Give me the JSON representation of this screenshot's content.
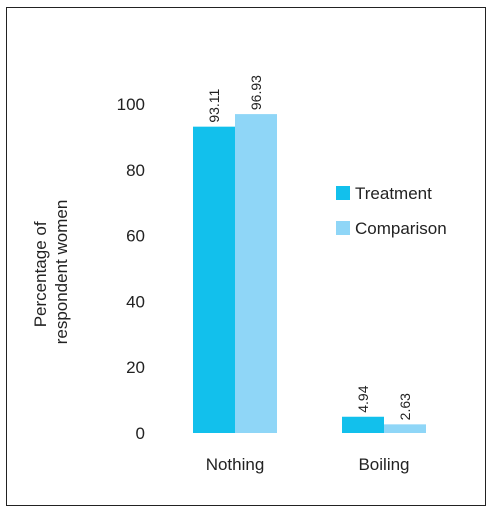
{
  "chart_data": {
    "type": "bar",
    "categories": [
      "Nothing",
      "Boiling"
    ],
    "series": [
      {
        "name": "Treatment",
        "values": [
          93.11,
          4.94
        ],
        "labels": [
          "93.11",
          "4.94"
        ],
        "color": "#12c0ec"
      },
      {
        "name": "Comparison",
        "values": [
          96.93,
          2.63
        ],
        "labels": [
          "96.93",
          "2.63"
        ],
        "color": "#8fd6f7"
      }
    ],
    "ylabel_lines": [
      "Percentage of",
      "respondent women"
    ],
    "ylim": [
      0,
      100
    ],
    "yticks": [
      0,
      20,
      40,
      60,
      80,
      100
    ],
    "grid": false,
    "legend_position": "right"
  }
}
